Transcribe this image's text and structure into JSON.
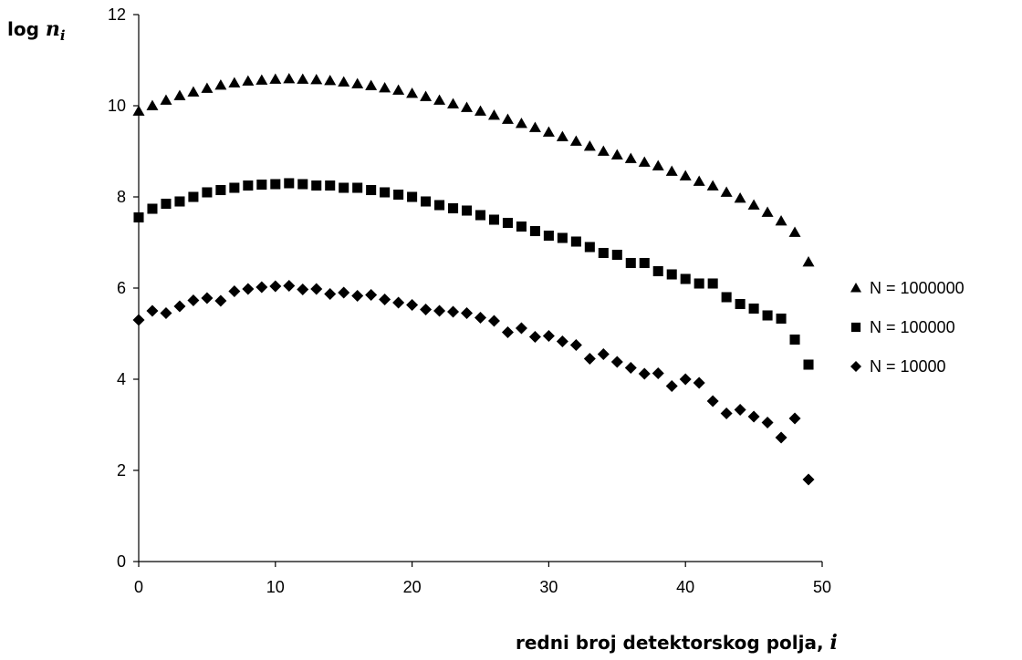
{
  "chart_data": {
    "type": "scatter",
    "ylabel": {
      "prefix": "log ",
      "var": "n",
      "sub": "i"
    },
    "xlabel": {
      "prefix": "redni broj detektorskog polja, ",
      "var": "i"
    },
    "xlim": [
      0,
      50
    ],
    "ylim": [
      0,
      12
    ],
    "x_ticks": [
      "0",
      "10",
      "20",
      "30",
      "40",
      "50"
    ],
    "y_ticks": [
      "0",
      "2",
      "4",
      "6",
      "8",
      "10",
      "12"
    ],
    "grid": false,
    "legend_position": "right",
    "x": [
      0,
      1,
      2,
      3,
      4,
      5,
      6,
      7,
      8,
      9,
      10,
      11,
      12,
      13,
      14,
      15,
      16,
      17,
      18,
      19,
      20,
      21,
      22,
      23,
      24,
      25,
      26,
      27,
      28,
      29,
      30,
      31,
      32,
      33,
      34,
      35,
      36,
      37,
      38,
      39,
      40,
      41,
      42,
      43,
      44,
      45,
      46,
      47,
      48,
      49
    ],
    "series": [
      {
        "name": "N = 1000000",
        "marker": "triangle",
        "values": [
          9.88,
          10.0,
          10.12,
          10.22,
          10.3,
          10.38,
          10.45,
          10.5,
          10.54,
          10.56,
          10.58,
          10.59,
          10.58,
          10.57,
          10.55,
          10.52,
          10.48,
          10.44,
          10.39,
          10.34,
          10.27,
          10.2,
          10.12,
          10.04,
          9.96,
          9.88,
          9.79,
          9.7,
          9.61,
          9.52,
          9.42,
          9.32,
          9.22,
          9.11,
          9.0,
          8.92,
          8.84,
          8.76,
          8.68,
          8.56,
          8.46,
          8.34,
          8.24,
          8.1,
          7.97,
          7.82,
          7.66,
          7.47,
          7.22,
          6.57
        ]
      },
      {
        "name": "N = 100000",
        "marker": "square",
        "values": [
          7.55,
          7.74,
          7.85,
          7.9,
          8.0,
          8.1,
          8.15,
          8.2,
          8.25,
          8.27,
          8.28,
          8.3,
          8.28,
          8.25,
          8.25,
          8.2,
          8.2,
          8.15,
          8.1,
          8.05,
          8.0,
          7.9,
          7.82,
          7.75,
          7.7,
          7.6,
          7.5,
          7.43,
          7.35,
          7.25,
          7.15,
          7.1,
          7.02,
          6.9,
          6.77,
          6.73,
          6.55,
          6.55,
          6.37,
          6.3,
          6.2,
          6.1,
          6.1,
          5.8,
          5.65,
          5.55,
          5.4,
          5.33,
          4.87,
          4.32
        ]
      },
      {
        "name": "N = 10000",
        "marker": "diamond",
        "values": [
          5.3,
          5.5,
          5.45,
          5.6,
          5.73,
          5.78,
          5.72,
          5.93,
          5.98,
          6.02,
          6.04,
          6.05,
          5.97,
          5.98,
          5.87,
          5.9,
          5.83,
          5.85,
          5.75,
          5.68,
          5.63,
          5.53,
          5.5,
          5.48,
          5.45,
          5.35,
          5.28,
          5.03,
          5.12,
          4.93,
          4.95,
          4.83,
          4.75,
          4.45,
          4.55,
          4.38,
          4.25,
          4.12,
          4.13,
          3.85,
          4.0,
          3.92,
          3.52,
          3.25,
          3.33,
          3.18,
          3.05,
          2.72,
          3.14,
          1.8
        ]
      }
    ]
  }
}
